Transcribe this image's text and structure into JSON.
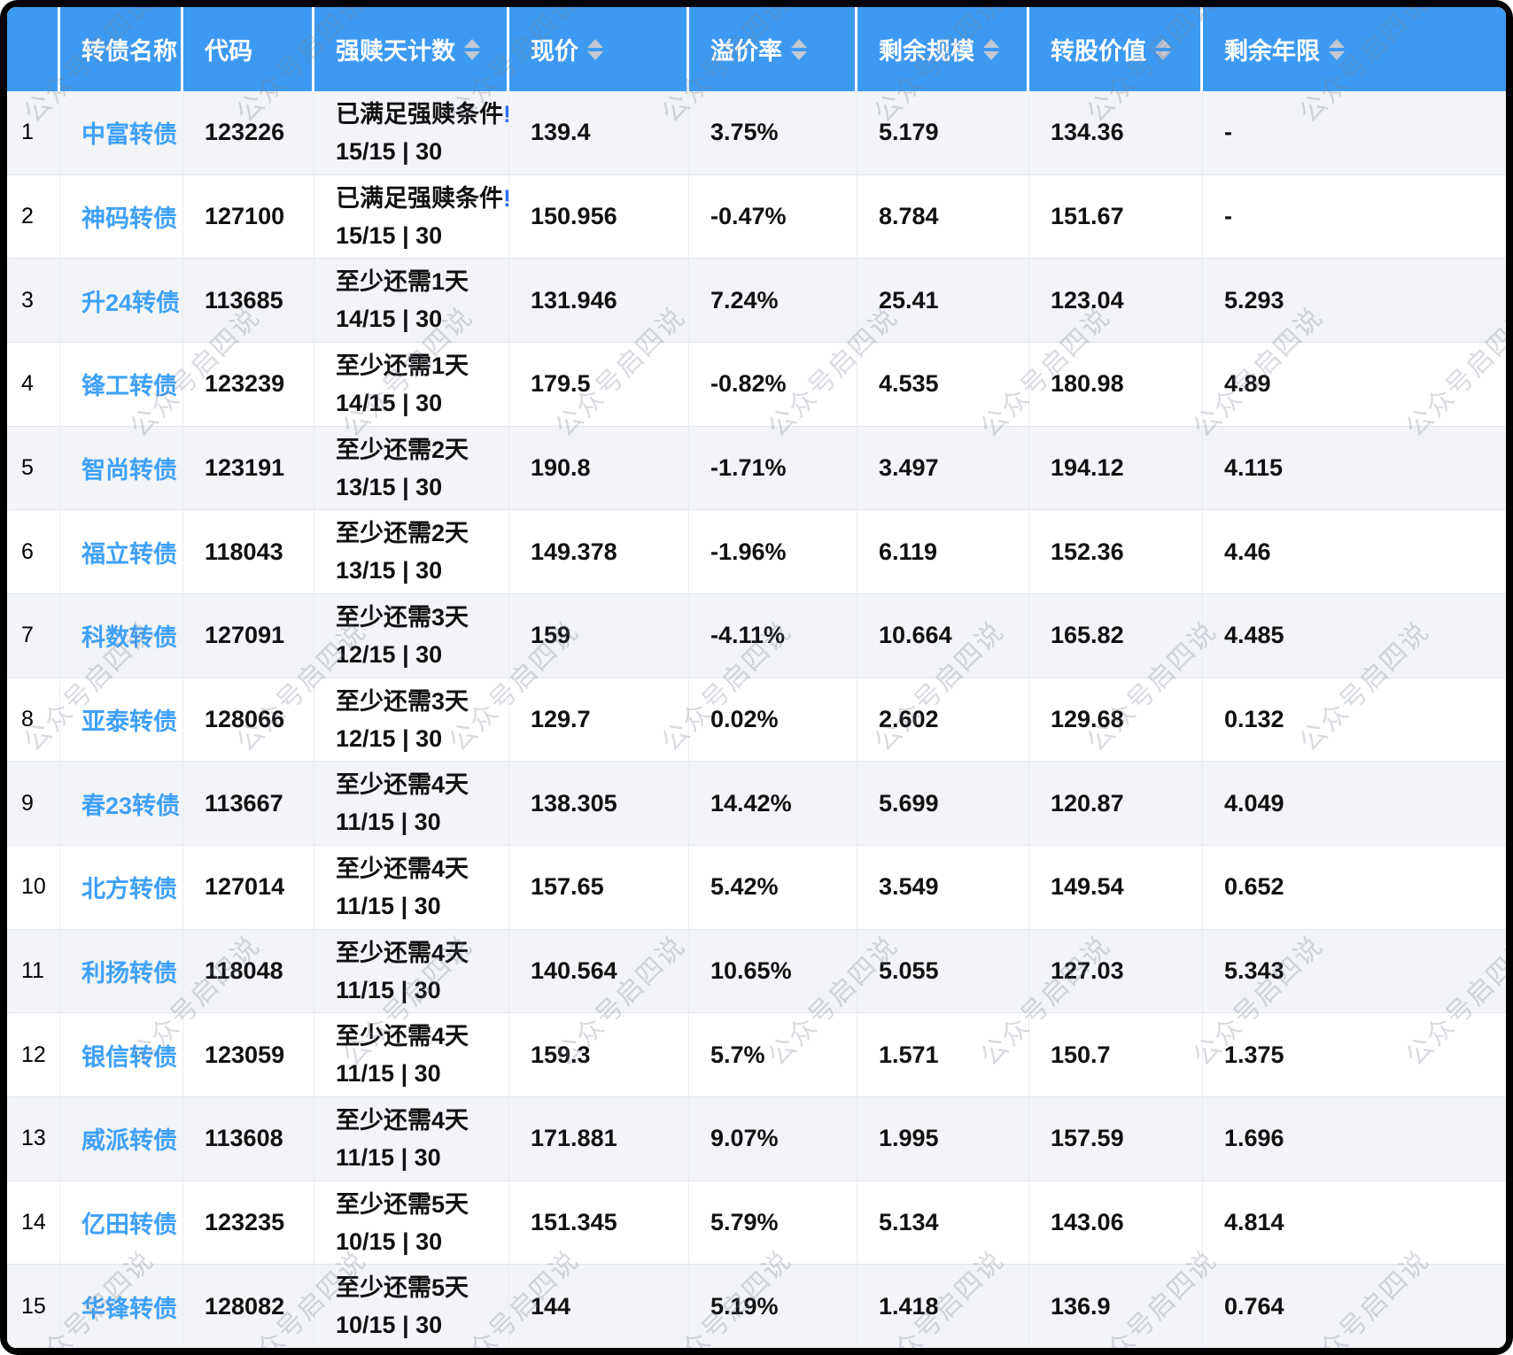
{
  "watermark": {
    "text": "公众号启四说"
  },
  "colors": {
    "header_blue": "#3d9af2",
    "link_blue": "#3ea0fa",
    "alert_blue": "#2a6cf6",
    "stripe_gray": "#f2f4f7",
    "sort_caret": "#c3c9d2"
  },
  "table": {
    "columns": [
      {
        "label": "",
        "sortable": false
      },
      {
        "label": "转债名称",
        "sortable": false
      },
      {
        "label": "代码",
        "sortable": false
      },
      {
        "label": "强赎天计数",
        "sortable": true
      },
      {
        "label": "现价",
        "sortable": true
      },
      {
        "label": "溢价率",
        "sortable": true
      },
      {
        "label": "剩余规模",
        "sortable": true
      },
      {
        "label": "转股价值",
        "sortable": true
      },
      {
        "label": "剩余年限",
        "sortable": true
      }
    ],
    "rows": [
      {
        "index": "1",
        "name": "中富转债",
        "code": "123226",
        "redeem_status": "已满足强赎条件",
        "redeem_alert": "!",
        "redeem_count": "15/15 | 30",
        "price": "139.4",
        "premium": "3.75%",
        "remaining_size": "5.179",
        "conversion_value": "134.36",
        "remaining_years": "-"
      },
      {
        "index": "2",
        "name": "神码转债",
        "code": "127100",
        "redeem_status": "已满足强赎条件",
        "redeem_alert": "!",
        "redeem_count": "15/15 | 30",
        "price": "150.956",
        "premium": "-0.47%",
        "remaining_size": "8.784",
        "conversion_value": "151.67",
        "remaining_years": "-"
      },
      {
        "index": "3",
        "name": "升24转债",
        "code": "113685",
        "redeem_status": "至少还需1天",
        "redeem_alert": "",
        "redeem_count": "14/15 | 30",
        "price": "131.946",
        "premium": "7.24%",
        "remaining_size": "25.41",
        "conversion_value": "123.04",
        "remaining_years": "5.293"
      },
      {
        "index": "4",
        "name": "锋工转债",
        "code": "123239",
        "redeem_status": "至少还需1天",
        "redeem_alert": "",
        "redeem_count": "14/15 | 30",
        "price": "179.5",
        "premium": "-0.82%",
        "remaining_size": "4.535",
        "conversion_value": "180.98",
        "remaining_years": "4.89"
      },
      {
        "index": "5",
        "name": "智尚转债",
        "code": "123191",
        "redeem_status": "至少还需2天",
        "redeem_alert": "",
        "redeem_count": "13/15 | 30",
        "price": "190.8",
        "premium": "-1.71%",
        "remaining_size": "3.497",
        "conversion_value": "194.12",
        "remaining_years": "4.115"
      },
      {
        "index": "6",
        "name": "福立转债",
        "code": "118043",
        "redeem_status": "至少还需2天",
        "redeem_alert": "",
        "redeem_count": "13/15 | 30",
        "price": "149.378",
        "premium": "-1.96%",
        "remaining_size": "6.119",
        "conversion_value": "152.36",
        "remaining_years": "4.46"
      },
      {
        "index": "7",
        "name": "科数转债",
        "code": "127091",
        "redeem_status": "至少还需3天",
        "redeem_alert": "",
        "redeem_count": "12/15 | 30",
        "price": "159",
        "premium": "-4.11%",
        "remaining_size": "10.664",
        "conversion_value": "165.82",
        "remaining_years": "4.485"
      },
      {
        "index": "8",
        "name": "亚泰转债",
        "code": "128066",
        "redeem_status": "至少还需3天",
        "redeem_alert": "",
        "redeem_count": "12/15 | 30",
        "price": "129.7",
        "premium": "0.02%",
        "remaining_size": "2.602",
        "conversion_value": "129.68",
        "remaining_years": "0.132"
      },
      {
        "index": "9",
        "name": "春23转债",
        "code": "113667",
        "redeem_status": "至少还需4天",
        "redeem_alert": "",
        "redeem_count": "11/15 | 30",
        "price": "138.305",
        "premium": "14.42%",
        "remaining_size": "5.699",
        "conversion_value": "120.87",
        "remaining_years": "4.049"
      },
      {
        "index": "10",
        "name": "北方转债",
        "code": "127014",
        "redeem_status": "至少还需4天",
        "redeem_alert": "",
        "redeem_count": "11/15 | 30",
        "price": "157.65",
        "premium": "5.42%",
        "remaining_size": "3.549",
        "conversion_value": "149.54",
        "remaining_years": "0.652"
      },
      {
        "index": "11",
        "name": "利扬转债",
        "code": "118048",
        "redeem_status": "至少还需4天",
        "redeem_alert": "",
        "redeem_count": "11/15 | 30",
        "price": "140.564",
        "premium": "10.65%",
        "remaining_size": "5.055",
        "conversion_value": "127.03",
        "remaining_years": "5.343"
      },
      {
        "index": "12",
        "name": "银信转债",
        "code": "123059",
        "redeem_status": "至少还需4天",
        "redeem_alert": "",
        "redeem_count": "11/15 | 30",
        "price": "159.3",
        "premium": "5.7%",
        "remaining_size": "1.571",
        "conversion_value": "150.7",
        "remaining_years": "1.375"
      },
      {
        "index": "13",
        "name": "威派转债",
        "code": "113608",
        "redeem_status": "至少还需4天",
        "redeem_alert": "",
        "redeem_count": "11/15 | 30",
        "price": "171.881",
        "premium": "9.07%",
        "remaining_size": "1.995",
        "conversion_value": "157.59",
        "remaining_years": "1.696"
      },
      {
        "index": "14",
        "name": "亿田转债",
        "code": "123235",
        "redeem_status": "至少还需5天",
        "redeem_alert": "",
        "redeem_count": "10/15 | 30",
        "price": "151.345",
        "premium": "5.79%",
        "remaining_size": "5.134",
        "conversion_value": "143.06",
        "remaining_years": "4.814"
      },
      {
        "index": "15",
        "name": "华锋转债",
        "code": "128082",
        "redeem_status": "至少还需5天",
        "redeem_alert": "",
        "redeem_count": "10/15 | 30",
        "price": "144",
        "premium": "5.19%",
        "remaining_size": "1.418",
        "conversion_value": "136.9",
        "remaining_years": "0.764"
      }
    ]
  }
}
